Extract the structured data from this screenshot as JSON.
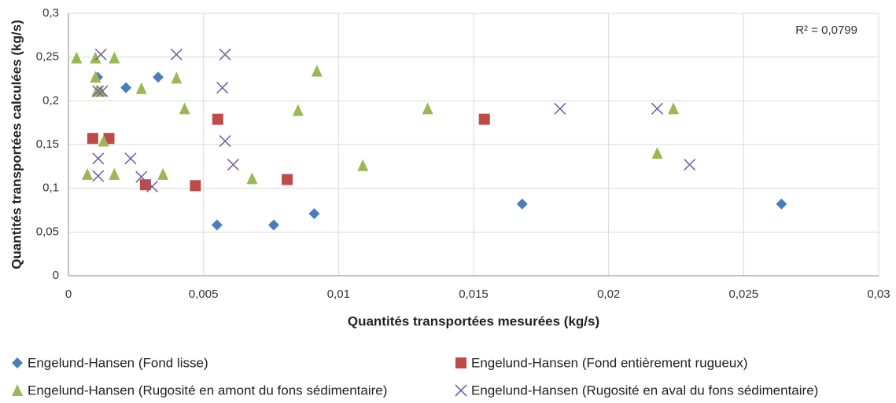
{
  "chart_data": {
    "type": "scatter",
    "xlabel": "Quantités transportées mesurées (kg/s)",
    "ylabel": "Quantités transportées calculées (kg/s)",
    "annotation": "R² = 0,0799",
    "xlim": [
      0,
      0.03
    ],
    "ylim": [
      0,
      0.3
    ],
    "xticks": [
      0,
      {
        "value": 0.005,
        "label": "0,005"
      },
      {
        "value": 0.01,
        "label": "0,01"
      },
      {
        "value": 0.015,
        "label": "0,015"
      },
      {
        "value": 0.02,
        "label": "0,02"
      },
      {
        "value": 0.025,
        "label": "0,025"
      },
      {
        "value": 0.03,
        "label": "0,03"
      }
    ],
    "yticks": [
      0,
      {
        "value": 0.05,
        "label": "0,05"
      },
      {
        "value": 0.1,
        "label": "0,1"
      },
      {
        "value": 0.15,
        "label": "0,15"
      },
      {
        "value": 0.2,
        "label": "0,2"
      },
      {
        "value": 0.25,
        "label": "0,25"
      },
      {
        "value": 0.3,
        "label": "0,3"
      }
    ],
    "grid": true,
    "series": [
      {
        "name": "Engelund-Hansen (Fond lisse)",
        "color": "#4a7ebb",
        "marker": "diamond",
        "x": [
          0.00108,
          0.00213,
          0.00332,
          0.0055,
          0.0076,
          0.0091,
          0.0168,
          0.0264
        ],
        "values": [
          0.227,
          0.215,
          0.227,
          0.058,
          0.058,
          0.071,
          0.082,
          0.082
        ]
      },
      {
        "name": "Engelund-Hansen (Fond entièrement rugueux)",
        "color": "#be4b48",
        "marker": "square",
        "x": [
          0.0009,
          0.0015,
          0.00285,
          0.0047,
          0.00553,
          0.0081,
          0.0154
        ],
        "values": [
          0.157,
          0.157,
          0.104,
          0.103,
          0.179,
          0.11,
          0.179
        ]
      },
      {
        "name": "Engelund-Hansen (Rugosité en amont du fons sédimentaire)",
        "color": "#98b954",
        "marker": "triangle",
        "x": [
          0.0003,
          0.001,
          0.0017,
          0.001,
          0.00105,
          0.0012,
          0.0013,
          0.0007,
          0.0017,
          0.0027,
          0.0035,
          0.004,
          0.0043,
          0.0068,
          0.0085,
          0.0092,
          0.0109,
          0.0133,
          0.0218,
          0.0224
        ],
        "values": [
          0.249,
          0.249,
          0.249,
          0.227,
          0.211,
          0.211,
          0.154,
          0.116,
          0.116,
          0.214,
          0.116,
          0.226,
          0.191,
          0.111,
          0.189,
          0.234,
          0.126,
          0.191,
          0.14,
          0.191
        ]
      },
      {
        "name": "Engelund-Hansen (Rugosité en aval du fons sédimentaire)",
        "color": "#7d60a0",
        "marker": "x",
        "x": [
          0.0012,
          0.0011,
          0.00125,
          0.0011,
          0.0011,
          0.0023,
          0.0027,
          0.0031,
          0.004,
          0.0057,
          0.0058,
          0.0058,
          0.0061,
          0.0182,
          0.0218,
          0.023
        ],
        "values": [
          0.253,
          0.211,
          0.211,
          0.134,
          0.114,
          0.134,
          0.113,
          0.102,
          0.253,
          0.215,
          0.253,
          0.154,
          0.127,
          0.191,
          0.191,
          0.127
        ]
      }
    ]
  }
}
